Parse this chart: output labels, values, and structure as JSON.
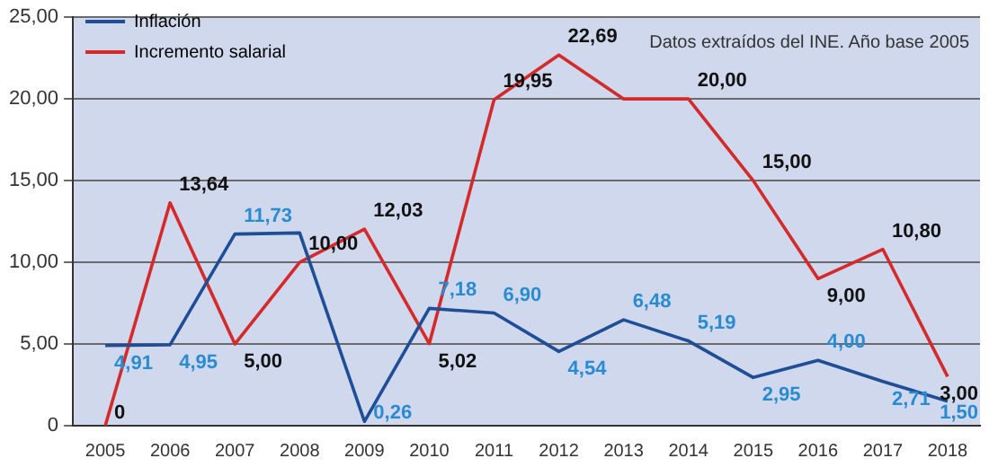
{
  "chart_data": {
    "type": "line",
    "categories": [
      "2005",
      "2006",
      "2007",
      "2008",
      "2009",
      "2010",
      "2011",
      "2012",
      "2013",
      "2014",
      "2015",
      "2016",
      "2017",
      "2018"
    ],
    "series": [
      {
        "name": "Inflación",
        "color": "#1f4e96",
        "values": [
          4.91,
          4.95,
          11.73,
          11.8,
          0.26,
          7.18,
          6.9,
          4.54,
          6.48,
          5.19,
          2.95,
          4.0,
          2.71,
          1.5
        ],
        "value_labels": [
          "4,91",
          "4,95",
          "11,73",
          null,
          "0,26",
          "7,18",
          "6,90",
          "4,54",
          "6,48",
          "5,19",
          "2,95",
          "4,00",
          "2,71",
          "1,50"
        ]
      },
      {
        "name": "Incremento salarial",
        "color": "#d42a2a",
        "values": [
          0,
          13.64,
          5.0,
          10.0,
          12.03,
          5.02,
          19.95,
          22.69,
          20.0,
          20.0,
          15.0,
          9.0,
          10.8,
          3.0
        ],
        "value_labels": [
          "0",
          "13,64",
          "5,00",
          "10,00",
          "12,03",
          "5,02",
          "19,95",
          "22,69",
          null,
          "20,00",
          "15,00",
          "9,00",
          "10,80",
          "3,00"
        ]
      }
    ],
    "ylim": [
      0,
      25
    ],
    "yticks": [
      {
        "value": 0,
        "label": "0"
      },
      {
        "value": 5,
        "label": "5,00"
      },
      {
        "value": 10,
        "label": "10,00"
      },
      {
        "value": 15,
        "label": "15,00"
      },
      {
        "value": 20,
        "label": "20,00"
      },
      {
        "value": 25,
        "label": "25,00"
      }
    ],
    "grid": "y",
    "legend": "top left",
    "marker": "none",
    "line_style": "solid",
    "annotations": [
      "Datos extraídos del INE. Año base 2005"
    ]
  }
}
